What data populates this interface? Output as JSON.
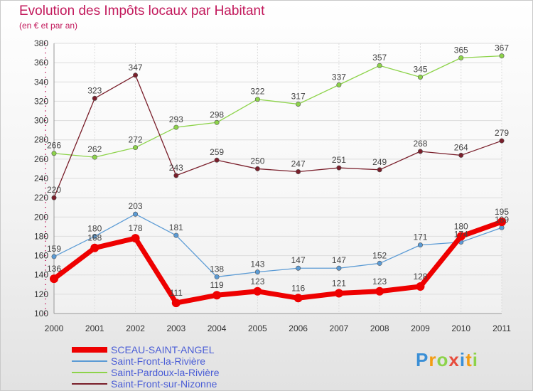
{
  "chart_data": {
    "type": "line",
    "title": "Evolution des Impôts locaux par Habitant",
    "subtitle": "(en € et par an)",
    "x": [
      "2000",
      "2001",
      "2002",
      "2003",
      "2004",
      "2005",
      "2006",
      "2007",
      "2008",
      "2009",
      "2010",
      "2011"
    ],
    "ylim": [
      100,
      380
    ],
    "yticks": [
      100,
      120,
      140,
      160,
      180,
      200,
      220,
      240,
      260,
      280,
      300,
      320,
      340,
      360,
      380
    ],
    "grid": true,
    "series": [
      {
        "name": "SCEAU-SAINT-ANGEL",
        "color": "#ee0000",
        "emphasis": true,
        "values": [
          136,
          168,
          178,
          111,
          119,
          123,
          116,
          121,
          123,
          128,
          180,
          195
        ]
      },
      {
        "name": "Saint-Front-la-Rivière",
        "color": "#5b9bd5",
        "emphasis": false,
        "values": [
          159,
          180,
          203,
          181,
          138,
          143,
          147,
          147,
          152,
          171,
          174,
          189
        ]
      },
      {
        "name": "Saint-Pardoux-la-Rivière",
        "color": "#8dd34a",
        "emphasis": false,
        "values": [
          266,
          262,
          272,
          293,
          298,
          322,
          317,
          337,
          357,
          345,
          365,
          367
        ]
      },
      {
        "name": "Saint-Front-sur-Nizonne",
        "color": "#7a1f2b",
        "emphasis": false,
        "values": [
          220,
          323,
          347,
          243,
          259,
          250,
          247,
          251,
          249,
          268,
          264,
          279
        ]
      }
    ]
  },
  "logo": {
    "text": "Proxiti"
  }
}
